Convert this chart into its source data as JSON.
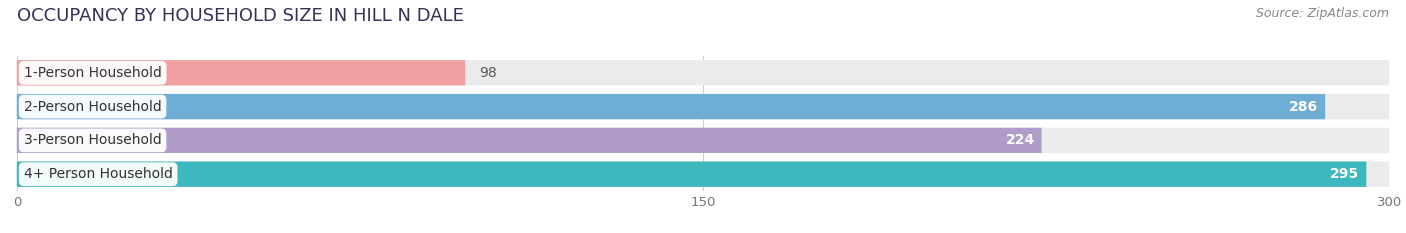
{
  "title": "OCCUPANCY BY HOUSEHOLD SIZE IN HILL N DALE",
  "source": "Source: ZipAtlas.com",
  "categories": [
    "1-Person Household",
    "2-Person Household",
    "3-Person Household",
    "4+ Person Household"
  ],
  "values": [
    98,
    286,
    224,
    295
  ],
  "bar_colors": [
    "#f0a0a0",
    "#6eadd4",
    "#b09cc8",
    "#3db8be"
  ],
  "label_colors": [
    "#555555",
    "#ffffff",
    "#ffffff",
    "#ffffff"
  ],
  "xlim": [
    0,
    300
  ],
  "xticks": [
    0,
    150,
    300
  ],
  "bg_color": "#ffffff",
  "bar_bg_color": "#ebebeb",
  "title_fontsize": 13,
  "source_fontsize": 9,
  "label_fontsize": 10,
  "value_fontsize": 10,
  "bar_height": 0.72,
  "figsize": [
    14.06,
    2.33
  ]
}
